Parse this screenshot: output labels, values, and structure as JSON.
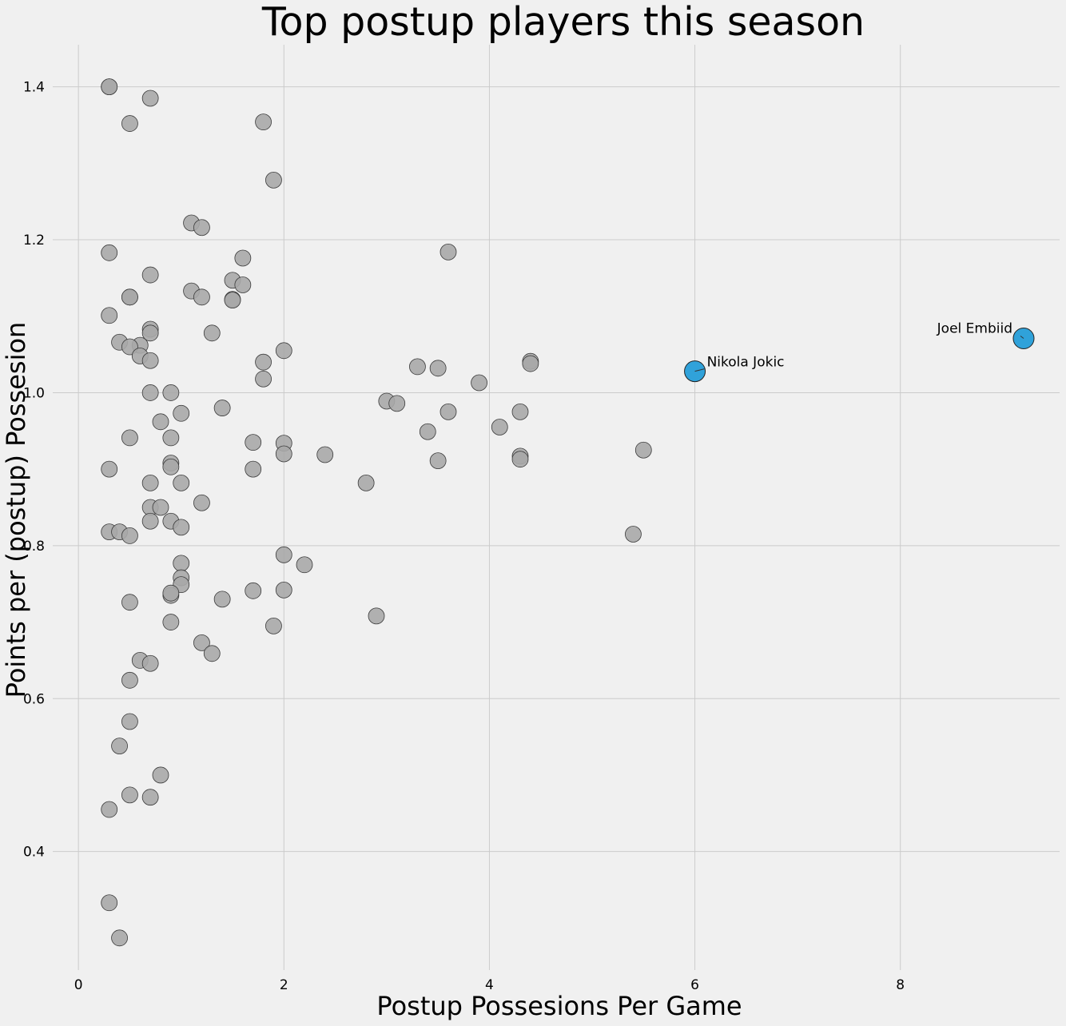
{
  "chart_data": {
    "type": "scatter",
    "title": "Top postup players this season",
    "xlabel": "Postup Possesions Per Game",
    "ylabel": "Points per (postup) Possesion",
    "xlim": [
      -0.25,
      9.55
    ],
    "ylim": [
      0.245,
      1.455
    ],
    "xticks": [
      0,
      2,
      4,
      6,
      8
    ],
    "yticks": [
      0.4,
      0.6,
      0.8,
      1.0,
      1.2,
      1.4
    ],
    "grid": true,
    "colors": {
      "background": "#f0f0f0",
      "points": "#a8a8a8",
      "highlight": "#30a2da",
      "grid": "#cbcbcb"
    },
    "points": [
      [
        0.3,
        1.4
      ],
      [
        0.3,
        1.4
      ],
      [
        0.7,
        1.385
      ],
      [
        0.5,
        1.352
      ],
      [
        1.8,
        1.354
      ],
      [
        1.9,
        1.278
      ],
      [
        1.1,
        1.222
      ],
      [
        1.2,
        1.216
      ],
      [
        0.3,
        1.183
      ],
      [
        1.6,
        1.176
      ],
      [
        3.6,
        1.184
      ],
      [
        0.7,
        1.154
      ],
      [
        1.5,
        1.147
      ],
      [
        1.6,
        1.141
      ],
      [
        1.1,
        1.133
      ],
      [
        0.5,
        1.125
      ],
      [
        0.5,
        1.125
      ],
      [
        1.2,
        1.125
      ],
      [
        1.5,
        1.122
      ],
      [
        1.5,
        1.121
      ],
      [
        0.3,
        1.101
      ],
      [
        0.7,
        1.083
      ],
      [
        0.7,
        1.078
      ],
      [
        1.3,
        1.078
      ],
      [
        0.4,
        1.066
      ],
      [
        0.6,
        1.062
      ],
      [
        0.5,
        1.06
      ],
      [
        2.0,
        1.055
      ],
      [
        0.6,
        1.048
      ],
      [
        0.7,
        1.042
      ],
      [
        1.8,
        1.04
      ],
      [
        4.4,
        1.041
      ],
      [
        4.4,
        1.038
      ],
      [
        3.3,
        1.034
      ],
      [
        3.5,
        1.032
      ],
      [
        1.8,
        1.018
      ],
      [
        3.9,
        1.013
      ],
      [
        0.7,
        1.0
      ],
      [
        0.9,
        1.0
      ],
      [
        3.0,
        0.989
      ],
      [
        3.1,
        0.986
      ],
      [
        1.4,
        0.98
      ],
      [
        1.0,
        0.973
      ],
      [
        3.6,
        0.975
      ],
      [
        4.3,
        0.975
      ],
      [
        0.8,
        0.962
      ],
      [
        4.1,
        0.955
      ],
      [
        3.4,
        0.949
      ],
      [
        0.5,
        0.941
      ],
      [
        0.9,
        0.941
      ],
      [
        1.7,
        0.935
      ],
      [
        2.0,
        0.934
      ],
      [
        5.5,
        0.925
      ],
      [
        2.0,
        0.92
      ],
      [
        2.4,
        0.919
      ],
      [
        4.3,
        0.917
      ],
      [
        4.3,
        0.913
      ],
      [
        3.5,
        0.911
      ],
      [
        0.9,
        0.908
      ],
      [
        0.9,
        0.903
      ],
      [
        0.3,
        0.9
      ],
      [
        1.7,
        0.9
      ],
      [
        0.7,
        0.882
      ],
      [
        1.0,
        0.882
      ],
      [
        2.8,
        0.882
      ],
      [
        1.2,
        0.856
      ],
      [
        0.7,
        0.85
      ],
      [
        0.8,
        0.85
      ],
      [
        0.7,
        0.832
      ],
      [
        0.9,
        0.832
      ],
      [
        1.0,
        0.824
      ],
      [
        0.3,
        0.818
      ],
      [
        0.4,
        0.818
      ],
      [
        5.4,
        0.815
      ],
      [
        0.5,
        0.813
      ],
      [
        2.0,
        0.788
      ],
      [
        1.0,
        0.777
      ],
      [
        2.2,
        0.775
      ],
      [
        1.0,
        0.758
      ],
      [
        1.0,
        0.749
      ],
      [
        1.7,
        0.741
      ],
      [
        2.0,
        0.742
      ],
      [
        0.9,
        0.735
      ],
      [
        0.9,
        0.738
      ],
      [
        1.4,
        0.73
      ],
      [
        0.5,
        0.726
      ],
      [
        2.9,
        0.708
      ],
      [
        0.9,
        0.7
      ],
      [
        1.9,
        0.695
      ],
      [
        1.2,
        0.673
      ],
      [
        1.3,
        0.659
      ],
      [
        0.6,
        0.65
      ],
      [
        0.7,
        0.646
      ],
      [
        0.5,
        0.624
      ],
      [
        0.5,
        0.57
      ],
      [
        0.4,
        0.538
      ],
      [
        0.8,
        0.5
      ],
      [
        0.5,
        0.474
      ],
      [
        0.7,
        0.471
      ],
      [
        0.3,
        0.455
      ],
      [
        0.3,
        0.333
      ],
      [
        0.4,
        0.287
      ]
    ],
    "highlighted": [
      {
        "name": "Nikola Jokic",
        "x": 6.0,
        "y": 1.028
      },
      {
        "name": "Joel Embiid",
        "x": 9.2,
        "y": 1.071
      }
    ]
  }
}
